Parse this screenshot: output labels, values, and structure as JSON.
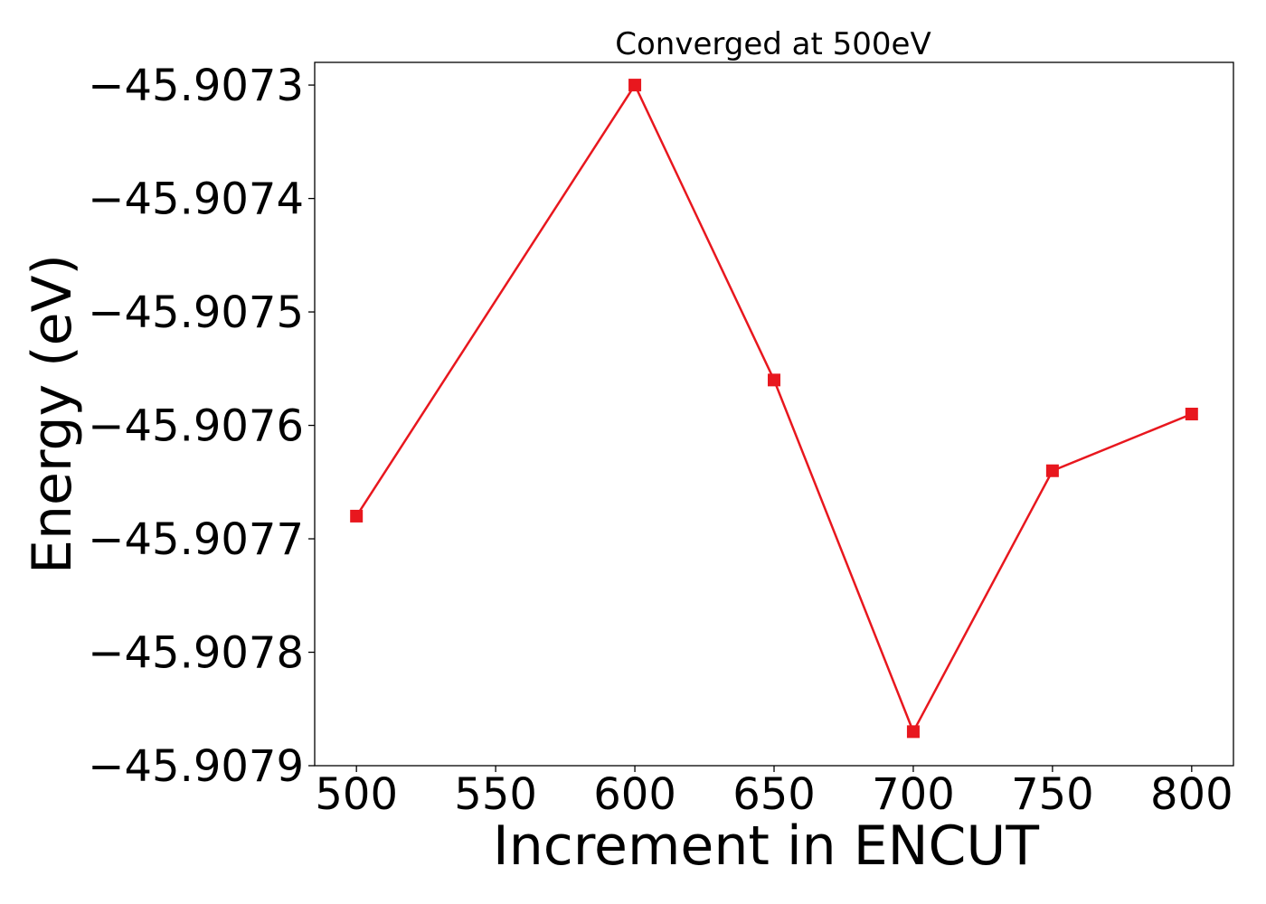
{
  "chart_data": {
    "type": "line",
    "title": "Converged at 500eV",
    "xlabel": "Increment in ENCUT",
    "ylabel": "Energy (eV)",
    "x": [
      500,
      600,
      650,
      700,
      750,
      800
    ],
    "series": [
      {
        "values": [
          -45.90768,
          -45.9073,
          -45.90756,
          -45.90787,
          -45.90764,
          -45.90759
        ],
        "color": "#e8171e",
        "marker": "square"
      }
    ],
    "xlim": [
      485,
      815
    ],
    "ylim": [
      -45.9079,
      -45.90728
    ],
    "xticks": [
      500,
      550,
      600,
      650,
      700,
      750,
      800
    ],
    "xtick_labels": [
      "500",
      "550",
      "600",
      "650",
      "700",
      "750",
      "800"
    ],
    "yticks": [
      -45.9073,
      -45.9074,
      -45.9075,
      -45.9076,
      -45.9077,
      -45.9078,
      -45.9079
    ],
    "ytick_labels": [
      "−45.9073",
      "−45.9074",
      "−45.9075",
      "−45.9076",
      "−45.9077",
      "−45.9078",
      "−45.9079"
    ],
    "grid": false,
    "legend": "none"
  }
}
